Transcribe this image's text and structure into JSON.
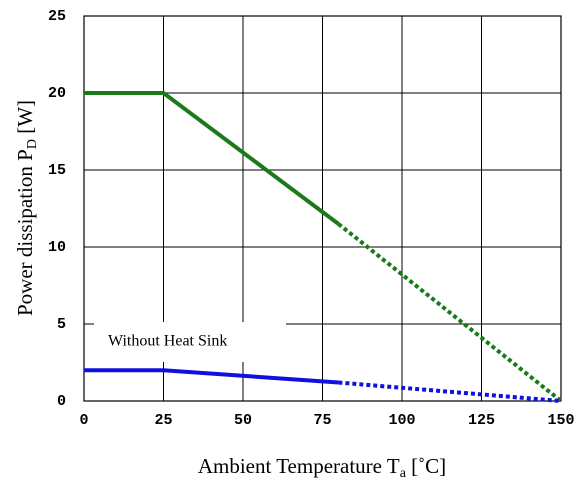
{
  "chart_data": {
    "type": "line",
    "ylabel": [
      "Power dissipation P",
      "D",
      " [W]"
    ],
    "xlabel": [
      "Ambient Temperature T",
      "a",
      " [˚C]"
    ],
    "annotation": "Without Heat Sink",
    "xlim": [
      0,
      150
    ],
    "xticks": [
      0,
      25,
      50,
      75,
      100,
      125,
      150
    ],
    "ylim": [
      0,
      25
    ],
    "yticks": [
      0,
      5,
      10,
      15,
      20,
      25
    ],
    "grid": true,
    "series": [
      {
        "color": "#1a7a1a",
        "style": "solid",
        "x": [
          0,
          25,
          80
        ],
        "values": [
          20,
          20,
          11.5
        ]
      },
      {
        "color": "#1a7a1a",
        "style": "dotted",
        "x": [
          80,
          150
        ],
        "values": [
          11.5,
          0
        ]
      },
      {
        "color": "#1010e0",
        "style": "solid",
        "x": [
          0,
          25,
          80
        ],
        "values": [
          2,
          2,
          1.2
        ]
      },
      {
        "color": "#1010e0",
        "style": "dotted",
        "x": [
          80,
          150
        ],
        "values": [
          1.2,
          0
        ]
      }
    ]
  }
}
